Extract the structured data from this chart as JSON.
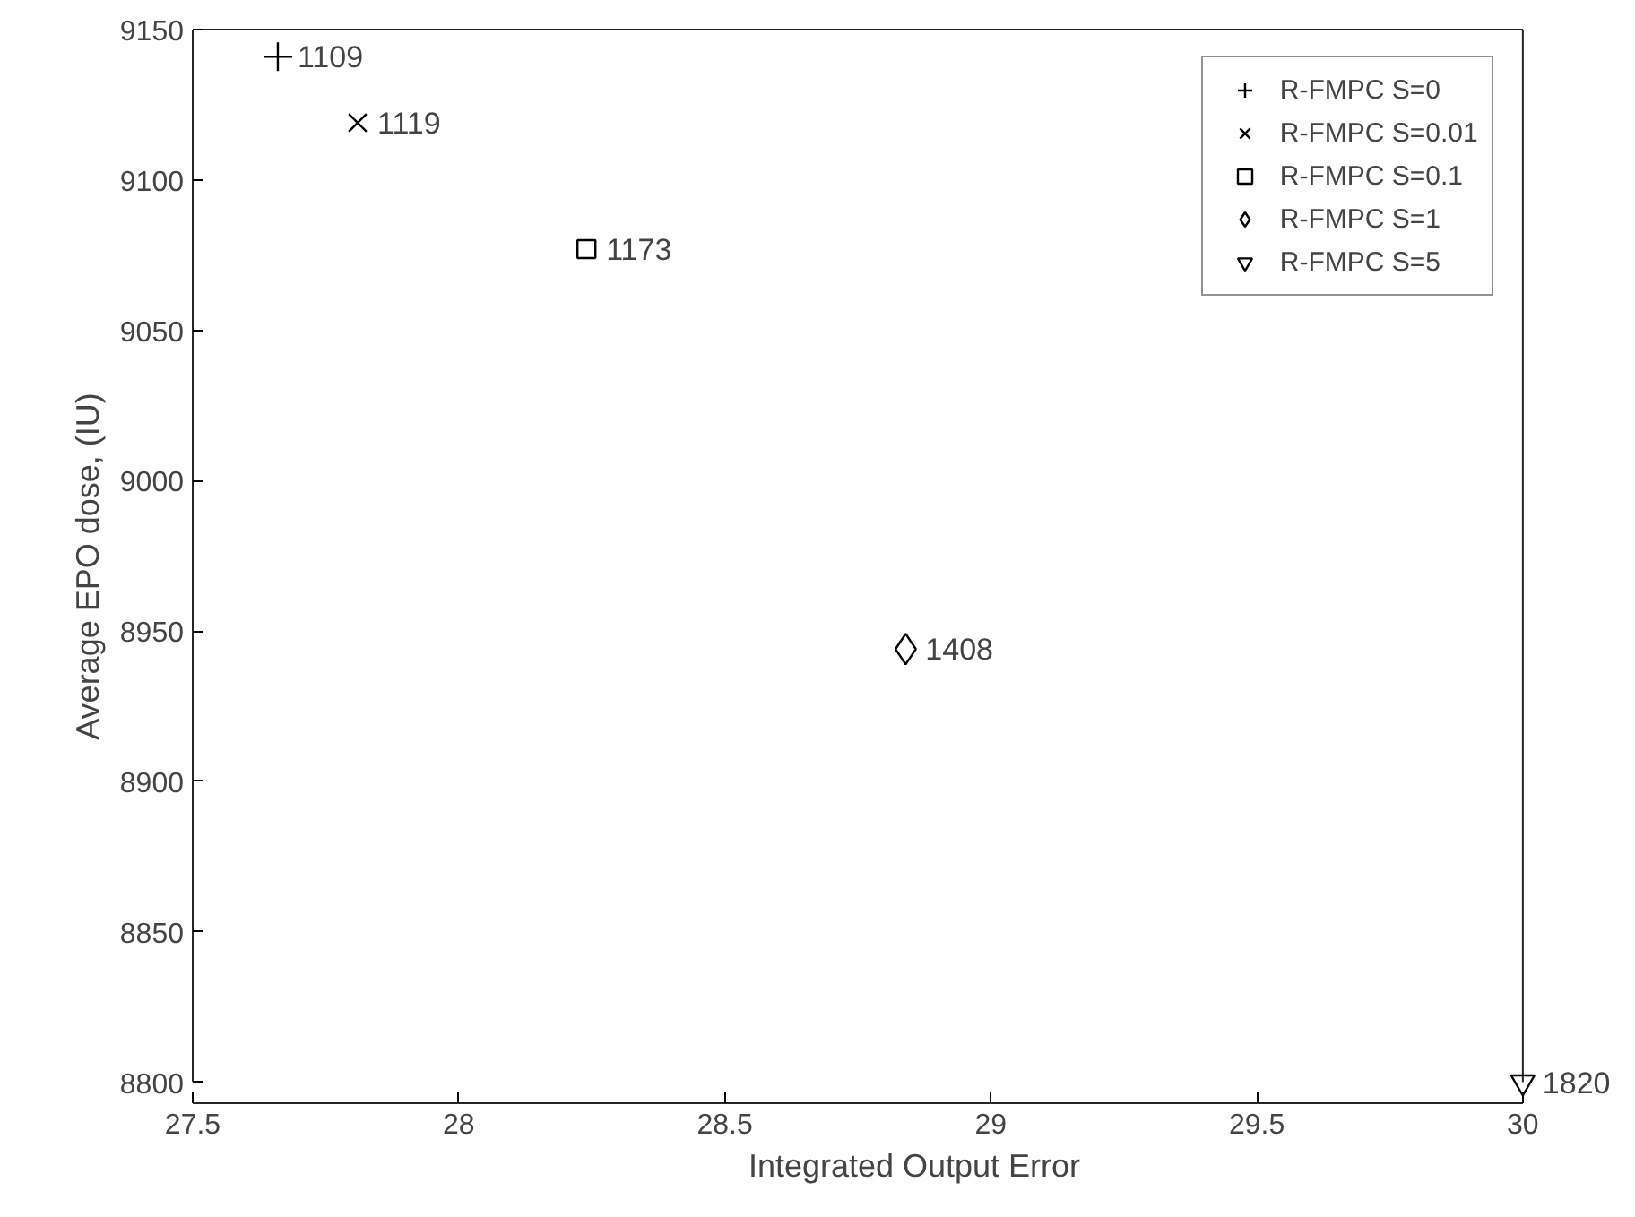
{
  "chart_data": {
    "type": "scatter",
    "xlabel": "Integrated Output Error",
    "ylabel": "Average EPO dose, (IU)",
    "xlim": [
      27.5,
      30
    ],
    "ylim": [
      8800,
      9150
    ],
    "xticks": [
      27.5,
      28,
      28.5,
      29,
      29.5,
      30
    ],
    "yticks": [
      8800,
      8850,
      8900,
      8950,
      9000,
      9050,
      9100,
      9150
    ],
    "grid": false,
    "legend": "top right",
    "series": [
      {
        "name": "R-FMPC S=0",
        "color": "#000000",
        "marker": "plus",
        "x": [
          27.66
        ],
        "values": [
          9141
        ]
      },
      {
        "name": "R-FMPC S=0.01",
        "color": "#000000",
        "marker": "x",
        "x": [
          27.81
        ],
        "values": [
          9119
        ]
      },
      {
        "name": "R-FMPC S=0.1",
        "color": "#000000",
        "marker": "square",
        "x": [
          28.24
        ],
        "values": [
          9077
        ]
      },
      {
        "name": "R-FMPC S=1",
        "color": "#000000",
        "marker": "diamond",
        "x": [
          28.84
        ],
        "values": [
          8944
        ]
      },
      {
        "name": "R-FMPC S=5",
        "color": "#000000",
        "marker": "triangle_down",
        "x": [
          30.0
        ],
        "values": [
          8800
        ]
      }
    ],
    "annotations": [
      {
        "text": "1109",
        "x": 27.66,
        "y": 9141
      },
      {
        "text": "1119",
        "x": 27.81,
        "y": 9119
      },
      {
        "text": "1173",
        "x": 28.24,
        "y": 9077
      },
      {
        "text": "1408",
        "x": 28.84,
        "y": 8944
      },
      {
        "text": "1820",
        "x": 30.0,
        "y": 8800
      }
    ]
  }
}
